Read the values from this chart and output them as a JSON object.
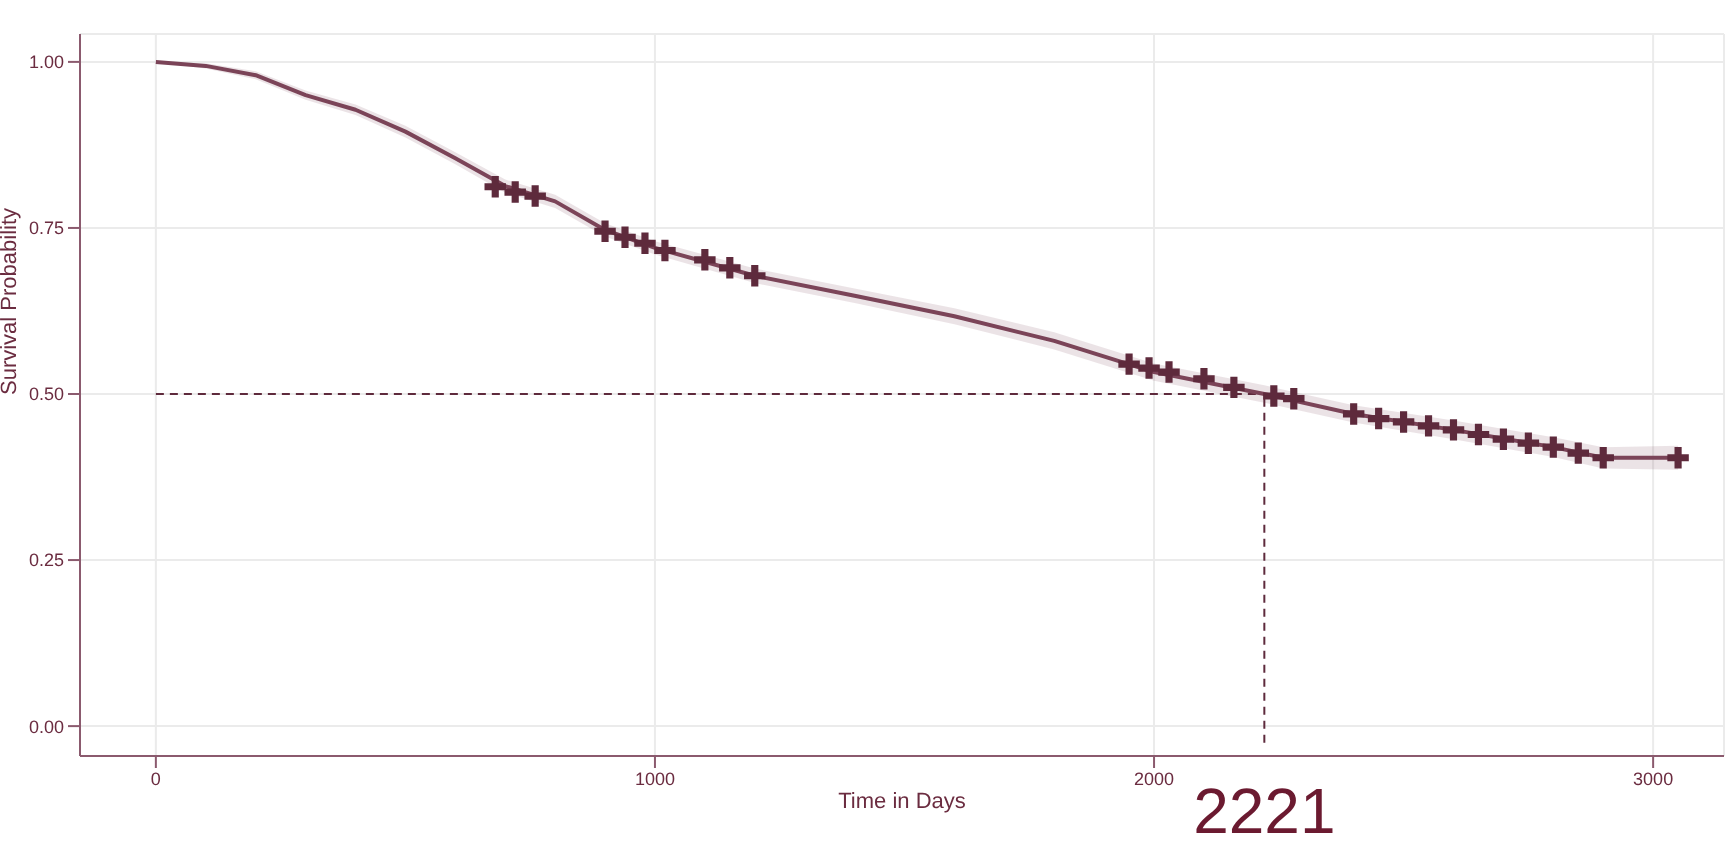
{
  "chart_data": {
    "type": "line",
    "xlabel": "Time in Days",
    "ylabel": "Survival Probability",
    "annotations": [
      "2221"
    ],
    "x": [
      0,
      100,
      200,
      300,
      400,
      500,
      600,
      700,
      800,
      900,
      1000,
      1200,
      1400,
      1600,
      1800,
      2000,
      2221,
      2400,
      2600,
      2800,
      2900,
      3050
    ],
    "series": [
      {
        "color": "#7b4458",
        "values": [
          1.0,
          0.994,
          0.98,
          0.95,
          0.928,
          0.895,
          0.855,
          0.813,
          0.79,
          0.747,
          0.72,
          0.678,
          0.648,
          0.617,
          0.58,
          0.533,
          0.5,
          0.47,
          0.446,
          0.42,
          0.404,
          0.404
        ],
        "lower": [
          1.0,
          0.99,
          0.974,
          0.943,
          0.92,
          0.886,
          0.846,
          0.803,
          0.78,
          0.737,
          0.71,
          0.667,
          0.637,
          0.605,
          0.567,
          0.52,
          0.487,
          0.457,
          0.432,
          0.405,
          0.388,
          0.386
        ],
        "upper": [
          1.0,
          0.998,
          0.986,
          0.957,
          0.936,
          0.904,
          0.864,
          0.823,
          0.8,
          0.757,
          0.73,
          0.689,
          0.659,
          0.629,
          0.593,
          0.546,
          0.513,
          0.483,
          0.46,
          0.435,
          0.42,
          0.422
        ]
      },
      {
        "type": "scatter",
        "marker": "cross",
        "color": "#5e2a3c",
        "x": [
          680,
          720,
          760,
          900,
          940,
          980,
          1020,
          1100,
          1150,
          1200,
          1950,
          1990,
          2030,
          2100,
          2160,
          2240,
          2280,
          2400,
          2450,
          2500,
          2550,
          2600,
          2650,
          2700,
          2750,
          2800,
          2850,
          2900,
          3050
        ],
        "values": [
          0.812,
          0.804,
          0.798,
          0.745,
          0.736,
          0.727,
          0.716,
          0.702,
          0.69,
          0.678,
          0.545,
          0.539,
          0.533,
          0.523,
          0.51,
          0.497,
          0.493,
          0.47,
          0.463,
          0.458,
          0.452,
          0.446,
          0.439,
          0.432,
          0.426,
          0.42,
          0.411,
          0.404,
          0.404
        ]
      }
    ],
    "ref_lines": [
      {
        "axis": "y",
        "value": 0.5,
        "line_style": "dashed",
        "color": "#5e2a3c"
      },
      {
        "axis": "x",
        "value": 2221,
        "line_style": "dashed",
        "color": "#5e2a3c"
      }
    ],
    "xlim": [
      -152,
      3142
    ],
    "ylim": [
      -0.045,
      1.042
    ],
    "xticks": [
      0,
      1000,
      2000,
      3000
    ],
    "yticks": [
      {
        "value": 0,
        "label": "0.00"
      },
      {
        "value": 0.25,
        "label": "0.25"
      },
      {
        "value": 0.5,
        "label": "0.50"
      },
      {
        "value": 0.75,
        "label": "0.75"
      },
      {
        "value": 1,
        "label": "1.00"
      }
    ],
    "grid": true,
    "legend": false
  }
}
